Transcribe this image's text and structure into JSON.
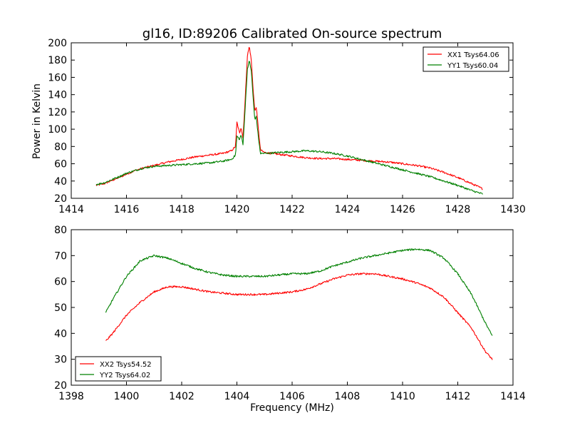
{
  "figure": {
    "title": "gl16, ID:89206 Calibrated On-source spectrum",
    "ylabel": "Power in Kelvin",
    "xlabel": "Frequency (MHz)"
  },
  "chart_data": [
    {
      "type": "line",
      "title": "gl16, ID:89206 Calibrated On-source spectrum",
      "xlabel": "",
      "ylabel": "Power in Kelvin",
      "xlim": [
        1414,
        1430
      ],
      "ylim": [
        20,
        200
      ],
      "xticks": [
        1414,
        1416,
        1418,
        1420,
        1422,
        1424,
        1426,
        1428,
        1430
      ],
      "yticks": [
        20,
        40,
        60,
        80,
        100,
        120,
        140,
        160,
        180,
        200
      ],
      "grid": false,
      "legend_position": "top-right",
      "series": [
        {
          "name": "XX1 Tsys64.06",
          "color": "#ff0000",
          "points": [
            [
              1414.9,
              35
            ],
            [
              1415.2,
              37
            ],
            [
              1415.5,
              41
            ],
            [
              1415.8,
              45
            ],
            [
              1416.0,
              48
            ],
            [
              1416.3,
              52
            ],
            [
              1416.6,
              55
            ],
            [
              1417.0,
              58
            ],
            [
              1417.5,
              62
            ],
            [
              1418.0,
              65
            ],
            [
              1418.5,
              68
            ],
            [
              1419.0,
              70
            ],
            [
              1419.5,
              72
            ],
            [
              1419.8,
              75
            ],
            [
              1419.95,
              80
            ],
            [
              1420.0,
              108
            ],
            [
              1420.1,
              95
            ],
            [
              1420.15,
              103
            ],
            [
              1420.22,
              90
            ],
            [
              1420.3,
              135
            ],
            [
              1420.38,
              185
            ],
            [
              1420.45,
              196
            ],
            [
              1420.52,
              180
            ],
            [
              1420.58,
              150
            ],
            [
              1420.65,
              120
            ],
            [
              1420.7,
              126
            ],
            [
              1420.78,
              100
            ],
            [
              1420.85,
              76
            ],
            [
              1421.0,
              73
            ],
            [
              1421.5,
              71
            ],
            [
              1422.0,
              69
            ],
            [
              1422.5,
              67
            ],
            [
              1423.0,
              66
            ],
            [
              1423.5,
              66
            ],
            [
              1424.0,
              65
            ],
            [
              1424.5,
              64
            ],
            [
              1425.0,
              63
            ],
            [
              1425.5,
              62
            ],
            [
              1426.0,
              60
            ],
            [
              1426.5,
              58
            ],
            [
              1427.0,
              55
            ],
            [
              1427.5,
              50
            ],
            [
              1428.0,
              44
            ],
            [
              1428.5,
              37
            ],
            [
              1428.9,
              31
            ]
          ]
        },
        {
          "name": "YY1 Tsys60.04",
          "color": "#008000",
          "points": [
            [
              1414.9,
              36
            ],
            [
              1415.2,
              38
            ],
            [
              1415.5,
              42
            ],
            [
              1415.8,
              46
            ],
            [
              1416.0,
              49
            ],
            [
              1416.3,
              52
            ],
            [
              1416.6,
              55
            ],
            [
              1417.0,
              57
            ],
            [
              1417.5,
              58
            ],
            [
              1418.0,
              59
            ],
            [
              1418.5,
              60
            ],
            [
              1419.0,
              61
            ],
            [
              1419.5,
              63
            ],
            [
              1419.8,
              65
            ],
            [
              1419.95,
              70
            ],
            [
              1420.0,
              92
            ],
            [
              1420.1,
              88
            ],
            [
              1420.15,
              94
            ],
            [
              1420.22,
              82
            ],
            [
              1420.3,
              125
            ],
            [
              1420.38,
              170
            ],
            [
              1420.45,
              179
            ],
            [
              1420.52,
              168
            ],
            [
              1420.58,
              140
            ],
            [
              1420.65,
              110
            ],
            [
              1420.7,
              115
            ],
            [
              1420.78,
              90
            ],
            [
              1420.85,
              72
            ],
            [
              1421.0,
              72
            ],
            [
              1421.5,
              73
            ],
            [
              1422.0,
              74
            ],
            [
              1422.5,
              75
            ],
            [
              1423.0,
              74
            ],
            [
              1423.5,
              72
            ],
            [
              1424.0,
              69
            ],
            [
              1424.5,
              65
            ],
            [
              1425.0,
              61
            ],
            [
              1425.5,
              57
            ],
            [
              1426.0,
              53
            ],
            [
              1426.5,
              49
            ],
            [
              1427.0,
              45
            ],
            [
              1427.5,
              40
            ],
            [
              1428.0,
              35
            ],
            [
              1428.5,
              29
            ],
            [
              1428.9,
              25
            ]
          ]
        }
      ]
    },
    {
      "type": "line",
      "title": "",
      "xlabel": "Frequency (MHz)",
      "ylabel": "",
      "xlim": [
        1398,
        1414
      ],
      "ylim": [
        20,
        80
      ],
      "xticks": [
        1398,
        1400,
        1402,
        1404,
        1406,
        1408,
        1410,
        1412,
        1414
      ],
      "yticks": [
        20,
        30,
        40,
        50,
        60,
        70,
        80
      ],
      "grid": false,
      "legend_position": "bottom-left",
      "series": [
        {
          "name": "XX2 Tsys54.52",
          "color": "#ff0000",
          "points": [
            [
              1399.25,
              37
            ],
            [
              1399.5,
              40
            ],
            [
              1400.0,
              47
            ],
            [
              1400.5,
              52
            ],
            [
              1401.0,
              56
            ],
            [
              1401.5,
              58
            ],
            [
              1402.0,
              58
            ],
            [
              1402.5,
              57
            ],
            [
              1403.0,
              56
            ],
            [
              1403.5,
              55.5
            ],
            [
              1404.0,
              55
            ],
            [
              1404.5,
              55
            ],
            [
              1405.0,
              55
            ],
            [
              1405.5,
              55.5
            ],
            [
              1406.0,
              56
            ],
            [
              1406.5,
              57
            ],
            [
              1407.0,
              59
            ],
            [
              1407.5,
              61
            ],
            [
              1408.0,
              62.5
            ],
            [
              1408.5,
              63
            ],
            [
              1409.0,
              63
            ],
            [
              1409.5,
              62
            ],
            [
              1410.0,
              61
            ],
            [
              1410.5,
              59.5
            ],
            [
              1411.0,
              57.5
            ],
            [
              1411.5,
              54
            ],
            [
              1412.0,
              48
            ],
            [
              1412.5,
              42
            ],
            [
              1413.0,
              33
            ],
            [
              1413.25,
              30
            ]
          ]
        },
        {
          "name": "YY2 Tsys64.02",
          "color": "#008000",
          "points": [
            [
              1399.25,
              48
            ],
            [
              1399.5,
              53
            ],
            [
              1400.0,
              62
            ],
            [
              1400.5,
              68
            ],
            [
              1401.0,
              70
            ],
            [
              1401.5,
              69
            ],
            [
              1402.0,
              67
            ],
            [
              1402.5,
              65
            ],
            [
              1403.0,
              63.5
            ],
            [
              1403.5,
              62.5
            ],
            [
              1404.0,
              62
            ],
            [
              1404.5,
              62
            ],
            [
              1405.0,
              62
            ],
            [
              1405.5,
              62.5
            ],
            [
              1406.0,
              63
            ],
            [
              1406.5,
              63
            ],
            [
              1407.0,
              64
            ],
            [
              1407.5,
              66
            ],
            [
              1408.0,
              67.5
            ],
            [
              1408.5,
              69
            ],
            [
              1409.0,
              70
            ],
            [
              1409.5,
              71
            ],
            [
              1410.0,
              72
            ],
            [
              1410.5,
              72.5
            ],
            [
              1411.0,
              72
            ],
            [
              1411.5,
              69
            ],
            [
              1412.0,
              63
            ],
            [
              1412.5,
              55
            ],
            [
              1413.0,
              44
            ],
            [
              1413.25,
              39
            ]
          ]
        }
      ]
    }
  ]
}
